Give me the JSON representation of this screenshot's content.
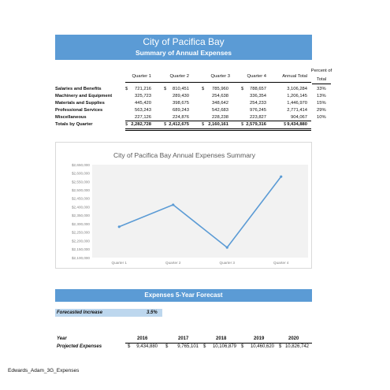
{
  "header": {
    "title": "City of Pacifica Bay",
    "subtitle": "Summary of Annual Expenses"
  },
  "table": {
    "columns": [
      "Quarter 1",
      "Quarter 2",
      "Quarter 3",
      "Quarter 4",
      "Annual Total"
    ],
    "pct_header_line1": "Percent of",
    "pct_header_line2": "Total",
    "currency_symbol": "$",
    "rows": [
      {
        "label": "Salaries and Benefits",
        "values": [
          "721,216",
          "810,451",
          "785,960",
          "788,657",
          "3,106,284"
        ],
        "pct": "33%"
      },
      {
        "label": "Machinery and Equipment",
        "values": [
          "325,723",
          "289,430",
          "254,638",
          "336,354",
          "1,206,145"
        ],
        "pct": "13%"
      },
      {
        "label": "Materials and Supplies",
        "values": [
          "445,420",
          "398,675",
          "348,642",
          "254,233",
          "1,446,970"
        ],
        "pct": "15%"
      },
      {
        "label": "Professional Services",
        "values": [
          "563,243",
          "689,243",
          "542,683",
          "976,245",
          "2,771,414"
        ],
        "pct": "29%"
      },
      {
        "label": "Miscellaneous",
        "values": [
          "227,126",
          "224,876",
          "228,238",
          "223,827",
          "904,067"
        ],
        "pct": "10%"
      }
    ],
    "totals": {
      "label": "Totals by Quarter",
      "values": [
        "2,282,728",
        "2,412,675",
        "2,160,161",
        "2,579,316",
        "9,434,880"
      ]
    }
  },
  "chart_data": {
    "type": "line",
    "title": "City of Pacifica Bay Annual Expenses Summary",
    "categories": [
      "Quarter 1",
      "Quarter 2",
      "Quarter 3",
      "Quarter 4"
    ],
    "series": [
      {
        "values": [
          2282728,
          2412675,
          2160161,
          2579316
        ]
      }
    ],
    "ylim": [
      2100000,
      2650000
    ],
    "yticks": [
      "$2,650,000",
      "$2,600,000",
      "$2,550,000",
      "$2,500,000",
      "$2,450,000",
      "$2,400,000",
      "$2,350,000",
      "$2,300,000",
      "$2,250,000",
      "$2,200,000",
      "$2,150,000",
      "$2,100,000"
    ],
    "grid": false,
    "legend": "none",
    "line_color": "#5b9bd5"
  },
  "forecast": {
    "title": "Expenses 5-Year Forecast",
    "increase_label": "Forecasted Increase",
    "increase_value": "3.5%",
    "year_label": "Year",
    "years": [
      "2016",
      "2017",
      "2018",
      "2019",
      "2020"
    ],
    "projected_label": "Projected Expenses",
    "projected": [
      "9,434,880",
      "9,765,101",
      "10,106,879",
      "10,460,620",
      "10,826,742"
    ]
  },
  "footer": {
    "text": "Edwards_Adam_3G_Expenses"
  },
  "colors": {
    "band": "#5b9bd5",
    "increase_box": "#bdd7ee"
  }
}
